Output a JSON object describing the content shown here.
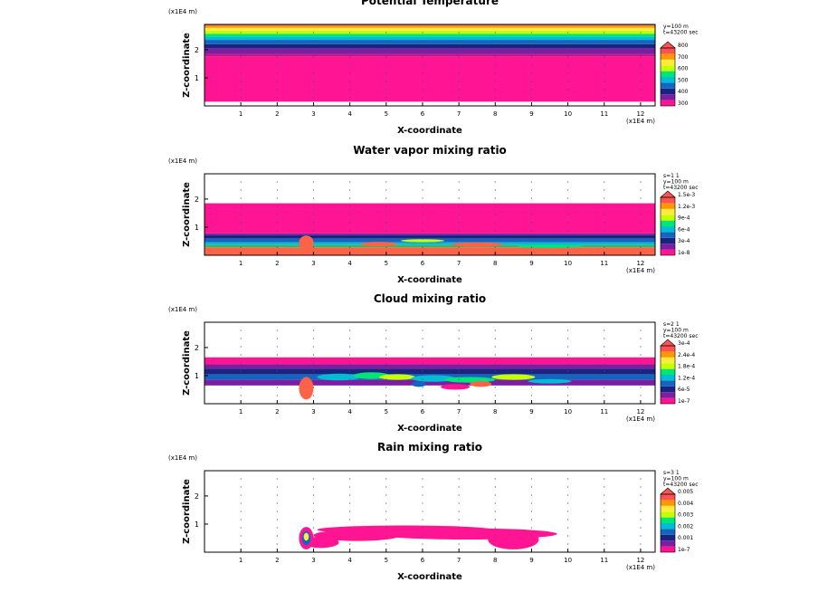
{
  "chart_data": [
    {
      "type": "heatmap",
      "title": "Potential Temperature",
      "xlabel": "X-coordinate",
      "ylabel": "Z-coordinate",
      "x_unit": "(x1E4 m)",
      "z_unit": "(x1E4 m)",
      "xticks": [
        "1",
        "2",
        "3",
        "4",
        "5",
        "6",
        "7",
        "8",
        "9",
        "10",
        "11",
        "12"
      ],
      "zticks": [
        "1",
        "2"
      ],
      "xlim": [
        0,
        12.4
      ],
      "zlim": [
        0,
        2.9
      ],
      "info": [
        "y=100 m",
        "t=43200 sec"
      ],
      "legend_levels": [
        "300",
        "400",
        "500",
        "600",
        "700",
        "800"
      ],
      "bands": [
        {
          "z0": 0.15,
          "z1": 1.75,
          "color": "#ff1493"
        },
        {
          "z0": 1.75,
          "z1": 1.85,
          "color": "#c71585"
        },
        {
          "z0": 1.85,
          "z1": 2.05,
          "color": "#7b1fa2"
        },
        {
          "z0": 2.05,
          "z1": 2.2,
          "color": "#1a237e"
        },
        {
          "z0": 2.2,
          "z1": 2.35,
          "color": "#1565c0"
        },
        {
          "z0": 2.35,
          "z1": 2.47,
          "color": "#00bcd4"
        },
        {
          "z0": 2.47,
          "z1": 2.57,
          "color": "#00e676"
        },
        {
          "z0": 2.57,
          "z1": 2.68,
          "color": "#c6ff00"
        },
        {
          "z0": 2.68,
          "z1": 2.78,
          "color": "#ffeb3b"
        },
        {
          "z0": 2.78,
          "z1": 2.86,
          "color": "#ff9800"
        },
        {
          "z0": 2.86,
          "z1": 2.9,
          "color": "#ff5252"
        }
      ],
      "blobs": []
    },
    {
      "type": "heatmap",
      "title": "Water vapor mixing ratio",
      "xlabel": "X-coordinate",
      "ylabel": "Z-coordinate",
      "x_unit": "(x1E4 m)",
      "z_unit": "(x1E4 m)",
      "xticks": [
        "1",
        "2",
        "3",
        "4",
        "5",
        "6",
        "7",
        "8",
        "9",
        "10",
        "11",
        "12"
      ],
      "zticks": [
        "1",
        "2"
      ],
      "xlim": [
        0,
        12.4
      ],
      "zlim": [
        0,
        2.9
      ],
      "info": [
        "s=1 1",
        "y=100 m",
        "t=43200 sec"
      ],
      "legend_levels": [
        "1e-8",
        "3e-4",
        "6e-4",
        "9e-4",
        "1.2e-3",
        "1.5e-3"
      ],
      "bands": [
        {
          "z0": 0.0,
          "z1": 0.28,
          "color": "#ff6347"
        },
        {
          "z0": 0.28,
          "z1": 0.36,
          "color": "#4caf50"
        },
        {
          "z0": 0.36,
          "z1": 0.46,
          "color": "#00bcd4"
        },
        {
          "z0": 0.46,
          "z1": 0.6,
          "color": "#1565c0"
        },
        {
          "z0": 0.6,
          "z1": 0.72,
          "color": "#1a237e"
        },
        {
          "z0": 0.72,
          "z1": 0.78,
          "color": "#7b1fa2"
        },
        {
          "z0": 0.78,
          "z1": 1.85,
          "color": "#ff1493"
        }
      ],
      "blobs": [
        {
          "x": 2.8,
          "z": 0.45,
          "rx": 0.2,
          "rz": 0.25,
          "color": "#ff6347"
        },
        {
          "x": 4.8,
          "z": 0.4,
          "rx": 0.5,
          "rz": 0.08,
          "color": "#ff6347"
        },
        {
          "x": 7.5,
          "z": 0.38,
          "rx": 0.7,
          "rz": 0.08,
          "color": "#ff6347"
        },
        {
          "x": 9.5,
          "z": 0.32,
          "rx": 0.9,
          "rz": 0.06,
          "color": "#00e676"
        },
        {
          "x": 6.0,
          "z": 0.52,
          "rx": 0.6,
          "rz": 0.05,
          "color": "#c6ff00"
        }
      ]
    },
    {
      "type": "heatmap",
      "title": "Cloud mixing ratio",
      "xlabel": "X-coordinate",
      "ylabel": "Z-coordinate",
      "x_unit": "(x1E4 m)",
      "z_unit": "(x1E4 m)",
      "xticks": [
        "1",
        "2",
        "3",
        "4",
        "5",
        "6",
        "7",
        "8",
        "9",
        "10",
        "11",
        "12"
      ],
      "zticks": [
        "1",
        "2"
      ],
      "xlim": [
        0,
        12.4
      ],
      "zlim": [
        0,
        2.9
      ],
      "info": [
        "s=2 1",
        "y=100 m",
        "t=43200 sec"
      ],
      "legend_levels": [
        "1e-7",
        "6e-5",
        "1.2e-4",
        "1.8e-4",
        "2.4e-4",
        "3e-4"
      ],
      "bands": [
        {
          "z0": 1.4,
          "z1": 1.65,
          "color": "#ff1493"
        },
        {
          "z0": 1.25,
          "z1": 1.4,
          "color": "#7b1fa2"
        },
        {
          "z0": 1.05,
          "z1": 1.25,
          "color": "#1a237e"
        },
        {
          "z0": 0.85,
          "z1": 1.05,
          "color": "#1565c0"
        },
        {
          "z0": 0.65,
          "z1": 0.85,
          "color": "#7b1fa2"
        }
      ],
      "blobs": [
        {
          "x": 2.8,
          "z": 0.55,
          "rx": 0.2,
          "rz": 0.4,
          "color": "#ff6347"
        },
        {
          "x": 3.7,
          "z": 0.95,
          "rx": 0.6,
          "rz": 0.12,
          "color": "#00bcd4"
        },
        {
          "x": 4.6,
          "z": 1.0,
          "rx": 0.5,
          "rz": 0.12,
          "color": "#00e676"
        },
        {
          "x": 5.3,
          "z": 0.95,
          "rx": 0.5,
          "rz": 0.1,
          "color": "#c6ff00"
        },
        {
          "x": 6.3,
          "z": 0.9,
          "rx": 0.6,
          "rz": 0.12,
          "color": "#00bcd4"
        },
        {
          "x": 7.3,
          "z": 0.85,
          "rx": 0.7,
          "rz": 0.1,
          "color": "#00e676"
        },
        {
          "x": 8.5,
          "z": 0.95,
          "rx": 0.6,
          "rz": 0.1,
          "color": "#c6ff00"
        },
        {
          "x": 6.9,
          "z": 0.6,
          "rx": 0.4,
          "rz": 0.1,
          "color": "#ff1493"
        },
        {
          "x": 7.6,
          "z": 0.7,
          "rx": 0.3,
          "rz": 0.1,
          "color": "#ff6347"
        },
        {
          "x": 5.9,
          "z": 0.7,
          "rx": 0.2,
          "rz": 0.1,
          "color": "#1565c0"
        },
        {
          "x": 9.5,
          "z": 0.8,
          "rx": 0.6,
          "rz": 0.08,
          "color": "#00bcd4"
        }
      ]
    },
    {
      "type": "heatmap",
      "title": "Rain mixing ratio",
      "xlabel": "X-coordinate",
      "ylabel": "Z-coordinate",
      "x_unit": "(x1E4 m)",
      "z_unit": "(x1E4 m)",
      "xticks": [
        "1",
        "2",
        "3",
        "4",
        "5",
        "6",
        "7",
        "8",
        "9",
        "10",
        "11",
        "12"
      ],
      "zticks": [
        "1",
        "2"
      ],
      "xlim": [
        0,
        12.4
      ],
      "zlim": [
        0,
        2.9
      ],
      "info": [
        "s=3 1",
        "y=100 m",
        "t=43200 sec"
      ],
      "legend_levels": [
        "1e-7",
        "0.001",
        "0.002",
        "0.003",
        "0.004",
        "0.005"
      ],
      "bands": [],
      "blobs": [
        {
          "x": 5.5,
          "z": 0.8,
          "rx": 2.4,
          "rz": 0.15,
          "color": "#ff1493"
        },
        {
          "x": 7.2,
          "z": 0.65,
          "rx": 2.5,
          "rz": 0.2,
          "color": "#ff1493"
        },
        {
          "x": 4.2,
          "z": 0.6,
          "rx": 1.2,
          "rz": 0.2,
          "color": "#ff1493"
        },
        {
          "x": 8.5,
          "z": 0.45,
          "rx": 0.7,
          "rz": 0.35,
          "color": "#ff1493"
        },
        {
          "x": 3.2,
          "z": 0.35,
          "rx": 0.5,
          "rz": 0.2,
          "color": "#ff1493"
        },
        {
          "x": 2.8,
          "z": 0.5,
          "rx": 0.2,
          "rz": 0.4,
          "color": "#ff1493"
        },
        {
          "x": 2.8,
          "z": 0.5,
          "rx": 0.12,
          "rz": 0.25,
          "color": "#1565c0"
        },
        {
          "x": 2.8,
          "z": 0.55,
          "rx": 0.07,
          "rz": 0.14,
          "color": "#ffeb3b"
        }
      ]
    }
  ],
  "legend_colors": [
    "#ff1493",
    "#7b1fa2",
    "#1a237e",
    "#1565c0",
    "#00bcd4",
    "#00e676",
    "#c6ff00",
    "#ffeb3b",
    "#ff9800",
    "#ff5252"
  ]
}
